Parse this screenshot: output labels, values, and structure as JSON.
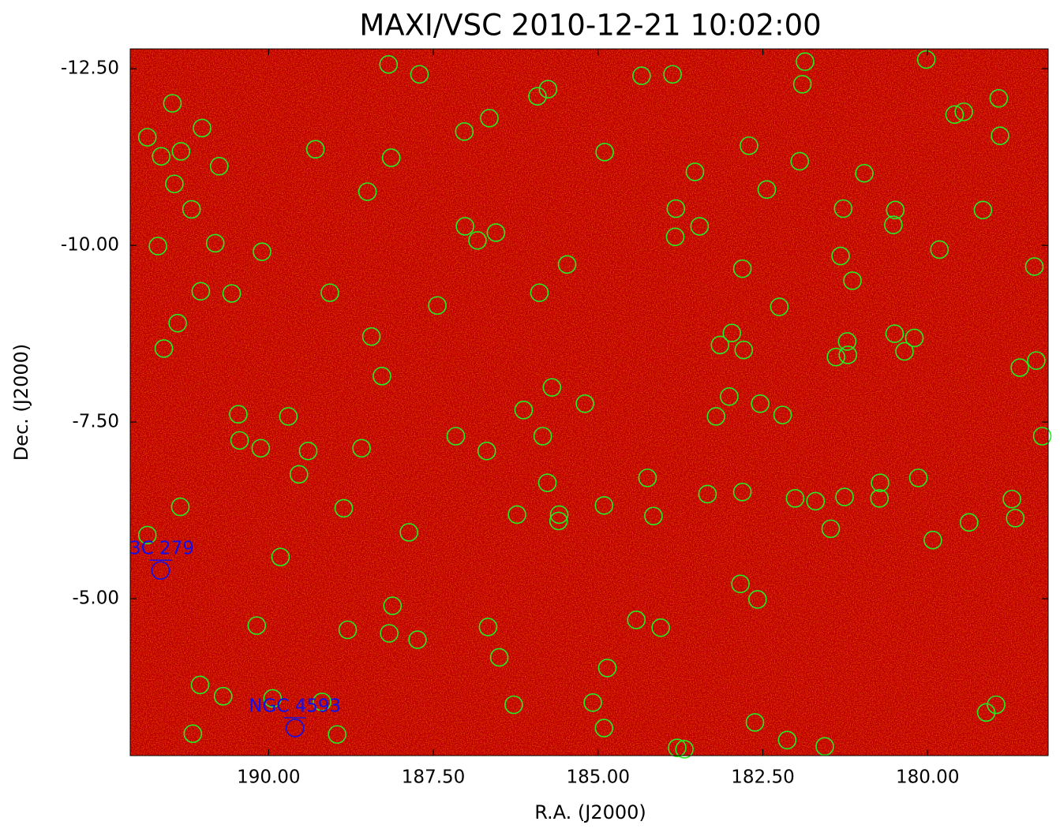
{
  "chart_data": {
    "type": "scatter",
    "title": "MAXI/VSC 2010-12-21 10:02:00",
    "x_label": "R.A. (J2000)",
    "y_label": "Dec. (J2000)",
    "xlim": [
      192.1,
      178.17
    ],
    "ylim": [
      -2.78,
      -12.78
    ],
    "xticks": [
      {
        "value": 190,
        "label": "190.00"
      },
      {
        "value": 187.5,
        "label": "187.50"
      },
      {
        "value": 185,
        "label": "185.00"
      },
      {
        "value": 182.5,
        "label": "182.50"
      },
      {
        "value": 180,
        "label": "180.00"
      }
    ],
    "yticks": [
      {
        "value": -12.5,
        "label": "-12.50"
      },
      {
        "value": -10,
        "label": "-10.00"
      },
      {
        "value": -7.5,
        "label": "-7.50"
      },
      {
        "value": -5,
        "label": "-5.00"
      }
    ],
    "background_color": "#b30000",
    "points": {
      "color": "#22ee22",
      "x": [
        188.18,
        187.71,
        191.46,
        191.84,
        191.01,
        191.63,
        191.33,
        190.75,
        191.43,
        191.17,
        191.68,
        190.81,
        190.1,
        191.03,
        190.56,
        191.38,
        191.59,
        189.29,
        188.14,
        188.5,
        187.03,
        186.65,
        185.92,
        185.76,
        184.34,
        183.87,
        181.86,
        180.02,
        181.9,
        178.92,
        179.59,
        179.45,
        178.9,
        182.71,
        184.9,
        181.94,
        180.96,
        183.53,
        182.44,
        183.82,
        181.28,
        180.49,
        179.16,
        183.46,
        180.52,
        187.02,
        186.83,
        186.55,
        183.83,
        179.82,
        181.32,
        178.38,
        185.47,
        182.81,
        181.14,
        185.89,
        189.07,
        187.44,
        182.25,
        188.44,
        182.97,
        183.15,
        182.79,
        180.5,
        180.2,
        181.22,
        181.39,
        181.21,
        180.35,
        178.35,
        178.6,
        188.28,
        185.7,
        183.01,
        185.2,
        186.13,
        182.54,
        183.21,
        182.2,
        190.46,
        189.7,
        190.44,
        187.16,
        185.84,
        190.12,
        188.59,
        189.4,
        186.69,
        178.26,
        189.54,
        184.25,
        185.77,
        180.72,
        180.14,
        183.34,
        182.81,
        182.01,
        181.7,
        181.26,
        180.73,
        178.72,
        191.34,
        188.86,
        186.23,
        185.59,
        184.91,
        184.16,
        185.6,
        179.37,
        178.67,
        181.47,
        191.84,
        187.87,
        179.92,
        189.82,
        182.84,
        182.58,
        188.12,
        184.42,
        190.18,
        188.8,
        188.17,
        187.74,
        186.67,
        184.05,
        186.5,
        184.86,
        191.04,
        190.69,
        189.94,
        189.19,
        186.28,
        185.08,
        178.96,
        179.11,
        182.62,
        184.91,
        191.15,
        188.96,
        182.13,
        183.8,
        183.69,
        181.56
      ],
      "y": [
        -12.56,
        -12.42,
        -12.01,
        -11.53,
        -11.66,
        -11.26,
        -11.33,
        -11.12,
        -10.87,
        -10.51,
        -9.99,
        -10.03,
        -9.91,
        -9.35,
        -9.32,
        -8.9,
        -8.54,
        -11.36,
        -11.24,
        -10.76,
        -11.61,
        -11.8,
        -12.11,
        -12.21,
        -12.4,
        -12.42,
        -12.6,
        -12.63,
        -12.28,
        -12.08,
        -11.85,
        -11.89,
        -11.55,
        -11.41,
        -11.32,
        -11.19,
        -11.02,
        -11.04,
        -10.79,
        -10.52,
        -10.52,
        -10.5,
        -10.5,
        -10.27,
        -10.29,
        -10.27,
        -10.07,
        -10.18,
        -10.12,
        -9.94,
        -9.85,
        -9.7,
        -9.73,
        -9.67,
        -9.5,
        -9.33,
        -9.33,
        -9.15,
        -9.13,
        -8.71,
        -8.76,
        -8.59,
        -8.52,
        -8.75,
        -8.69,
        -8.64,
        -8.42,
        -8.45,
        -8.5,
        -8.37,
        -8.27,
        -8.15,
        -7.99,
        -7.86,
        -7.76,
        -7.67,
        -7.76,
        -7.58,
        -7.6,
        -7.61,
        -7.58,
        -7.24,
        -7.3,
        -7.3,
        -7.13,
        -7.13,
        -7.09,
        -7.09,
        -7.3,
        -6.76,
        -6.71,
        -6.64,
        -6.64,
        -6.71,
        -6.48,
        -6.51,
        -6.42,
        -6.38,
        -6.44,
        -6.42,
        -6.41,
        -6.3,
        -6.28,
        -6.19,
        -6.19,
        -6.32,
        -6.17,
        -6.1,
        -6.08,
        -6.14,
        -5.99,
        -5.9,
        -5.94,
        -5.83,
        -5.59,
        -5.21,
        -4.99,
        -4.9,
        -4.7,
        -4.62,
        -4.56,
        -4.51,
        -4.42,
        -4.6,
        -4.59,
        -4.17,
        -4.02,
        -3.78,
        -3.62,
        -3.59,
        -3.54,
        -3.5,
        -3.53,
        -3.5,
        -3.39,
        -3.25,
        -3.17,
        -3.09,
        -3.08,
        -3.0,
        -2.89,
        -2.87,
        -2.91
      ]
    },
    "labeled_sources": {
      "color": "#1010ee",
      "labels": [
        "3C 279",
        "NGC 4593"
      ],
      "x": [
        191.64,
        189.6
      ],
      "y": [
        -5.4,
        -3.17
      ]
    }
  }
}
